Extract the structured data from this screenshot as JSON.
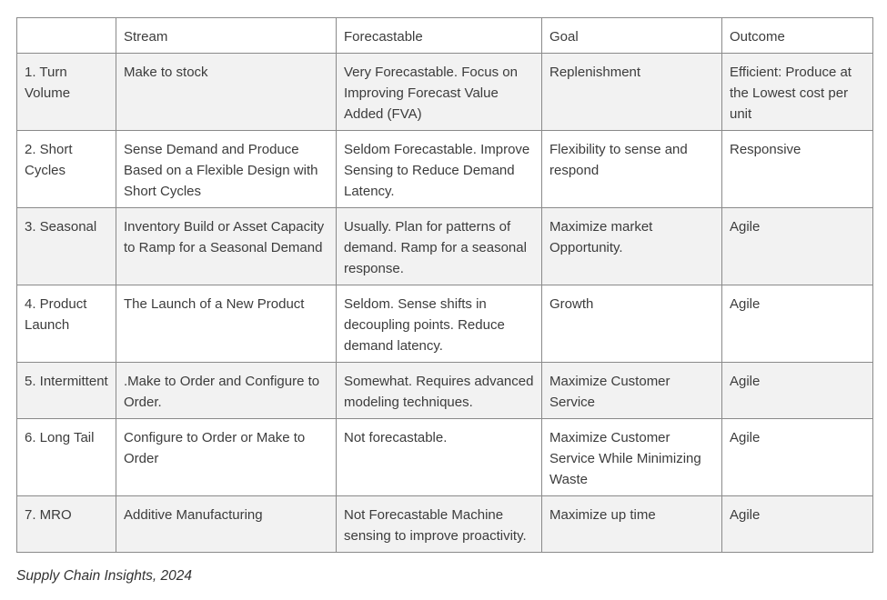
{
  "table": {
    "header": [
      "",
      "Stream",
      "Forecastable",
      "Goal",
      "Outcome"
    ],
    "rows": [
      [
        "1. Turn Volume",
        "Make to stock",
        "Very Forecastable. Focus on Improving Forecast Value Added (FVA)",
        "Replenishment",
        "Efficient: Produce at the Lowest cost per unit"
      ],
      [
        "2. Short Cycles",
        "Sense Demand and Produce Based on a Flexible Design with Short Cycles",
        "Seldom Forecastable. Improve Sensing to Reduce Demand Latency.",
        "Flexibility to sense and respond",
        "Responsive"
      ],
      [
        "3. Seasonal",
        "Inventory Build or Asset Capacity to Ramp for a Seasonal Demand",
        "Usually. Plan for patterns of demand. Ramp for a seasonal response.",
        "Maximize market Opportunity.",
        "Agile"
      ],
      [
        "4. Product Launch",
        "The Launch of a New Product",
        "Seldom. Sense shifts in decoupling points. Reduce demand latency.",
        "Growth",
        "Agile"
      ],
      [
        "5. Intermittent",
        ".Make to Order and Configure to Order.",
        "Somewhat. Requires advanced modeling techniques.",
        "Maximize Customer Service",
        "Agile"
      ],
      [
        "6. Long Tail",
        "Configure to Order or Make to Order",
        "Not forecastable.",
        "Maximize Customer Service While Minimizing Waste",
        "Agile"
      ],
      [
        "7. MRO",
        "Additive Manufacturing",
        "Not Forecastable Machine sensing to improve proactivity.",
        "Maximize up time",
        "Agile"
      ]
    ]
  },
  "caption": "Supply Chain Insights, 2024"
}
